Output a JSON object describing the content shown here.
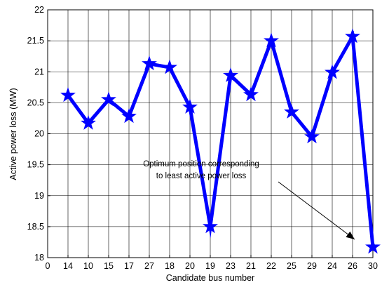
{
  "chart_data": {
    "type": "line",
    "xlabel": "Candidate bus number",
    "ylabel": "Active power loss (MW)",
    "x_tick_labels": [
      "0",
      "14",
      "10",
      "15",
      "17",
      "27",
      "18",
      "20",
      "19",
      "23",
      "21",
      "22",
      "25",
      "29",
      "24",
      "26",
      "30"
    ],
    "y_ticks": [
      "18",
      "18.5",
      "19",
      "19.5",
      "20",
      "20.5",
      "21",
      "21.5",
      "22"
    ],
    "ylim": [
      18,
      22
    ],
    "grid": true,
    "categories": [
      "14",
      "10",
      "15",
      "17",
      "27",
      "18",
      "20",
      "19",
      "23",
      "21",
      "22",
      "25",
      "29",
      "24",
      "26",
      "30"
    ],
    "series": [
      {
        "values": [
          20.62,
          20.17,
          20.55,
          20.28,
          21.13,
          21.07,
          20.43,
          18.5,
          20.94,
          20.63,
          21.5,
          20.35,
          19.95,
          20.99,
          21.57,
          18.17
        ],
        "color": "#0000ff",
        "marker": "star"
      }
    ],
    "annotation": {
      "lines": [
        "Optimum position corresponding",
        "to least active power loss"
      ],
      "target_category": "30"
    }
  }
}
